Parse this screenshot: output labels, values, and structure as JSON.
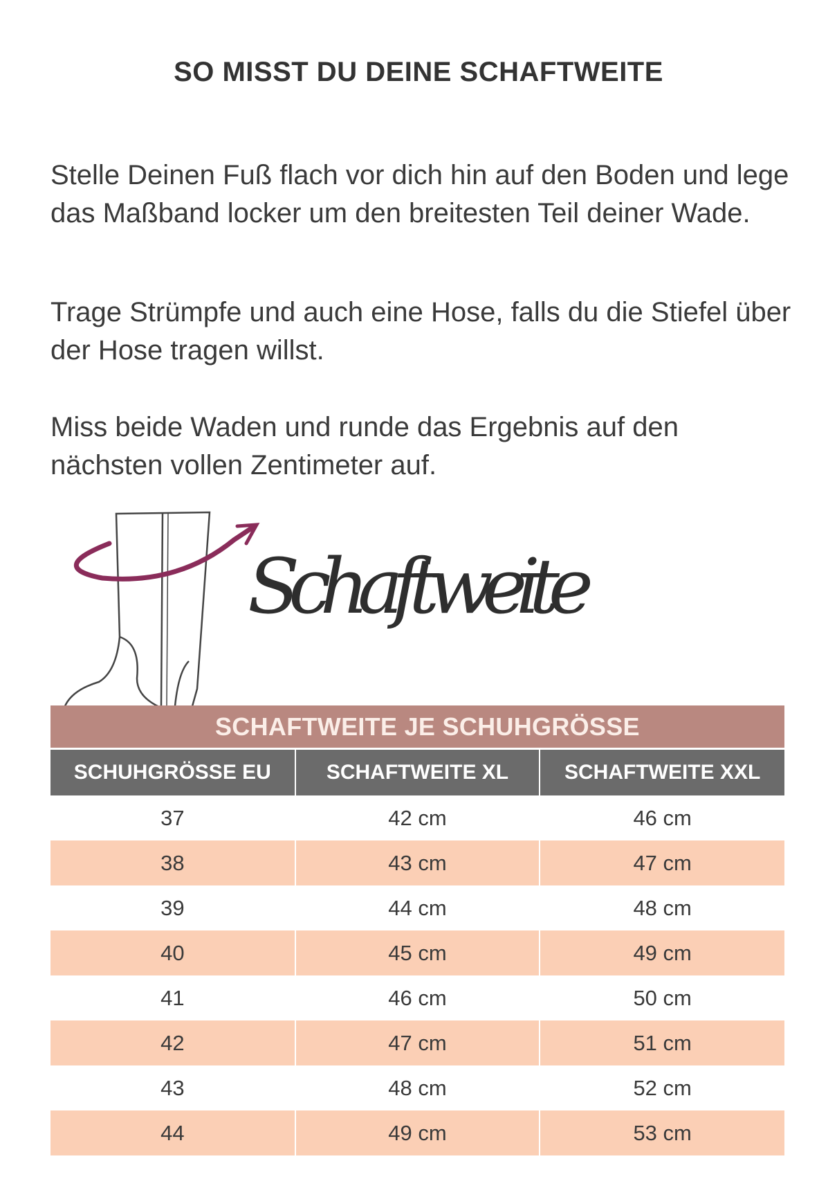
{
  "title": "SO MISST DU DEINE SCHAFTWEITE",
  "paragraphs": [
    "Stelle Deinen Fuß flach vor dich hin auf den Boden und lege das Maßband locker um den breitesten Teil deiner Wade.",
    "Trage Strümpfe und auch eine Hose, falls du die Stiefel über der Hose tragen willst.",
    "Miss beide Waden und runde das Ergebnis auf den nächsten vollen Zentimeter auf."
  ],
  "illustration": {
    "script_text": "Schaftweite",
    "arrow_color": "#8a2c5a"
  },
  "table": {
    "band_title": "SCHAFTWEITE JE SCHUHGRÖSSE",
    "headers": [
      "SCHUHGRÖSSE EU",
      "SCHAFTWEITE XL",
      "SCHAFTWEITE XXL"
    ],
    "rows": [
      [
        "37",
        "42 cm",
        "46 cm"
      ],
      [
        "38",
        "43 cm",
        "47 cm"
      ],
      [
        "39",
        "44 cm",
        "48 cm"
      ],
      [
        "40",
        "45 cm",
        "49 cm"
      ],
      [
        "41",
        "46 cm",
        "50 cm"
      ],
      [
        "42",
        "47 cm",
        "51 cm"
      ],
      [
        "43",
        "48 cm",
        "52 cm"
      ],
      [
        "44",
        "49 cm",
        "53 cm"
      ]
    ],
    "colors": {
      "band": "#b98880",
      "header": "#6b6b6b",
      "alt_row": "#fbcfb5"
    }
  }
}
